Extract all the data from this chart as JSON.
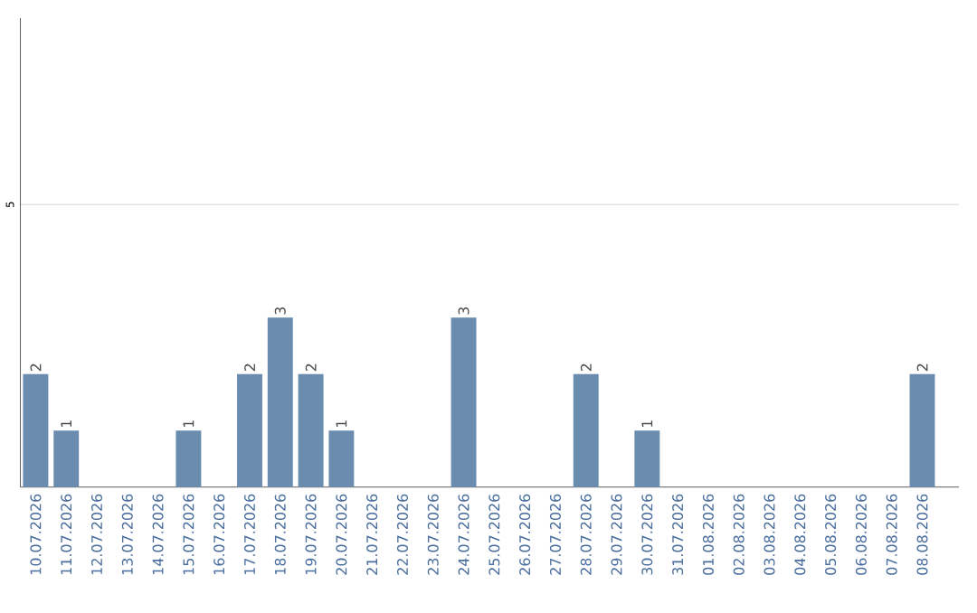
{
  "chart_data": {
    "type": "bar",
    "categories": [
      "10.07.2026",
      "11.07.2026",
      "12.07.2026",
      "13.07.2026",
      "14.07.2026",
      "15.07.2026",
      "16.07.2026",
      "17.07.2026",
      "18.07.2026",
      "19.07.2026",
      "20.07.2026",
      "21.07.2026",
      "22.07.2026",
      "23.07.2026",
      "24.07.2026",
      "25.07.2026",
      "26.07.2026",
      "27.07.2026",
      "28.07.2026",
      "29.07.2026",
      "30.07.2026",
      "31.07.2026",
      "01.08.2026",
      "02.08.2026",
      "03.08.2026",
      "04.08.2026",
      "05.08.2026",
      "06.08.2026",
      "07.08.2026",
      "08.08.2026"
    ],
    "values": [
      2,
      1,
      0,
      0,
      0,
      1,
      0,
      2,
      3,
      2,
      1,
      0,
      0,
      0,
      3,
      0,
      0,
      0,
      2,
      0,
      1,
      0,
      0,
      0,
      0,
      0,
      0,
      0,
      0,
      2
    ],
    "value_labels": [
      "2",
      "1",
      null,
      null,
      null,
      "1",
      null,
      "2",
      "3",
      "2",
      "1",
      null,
      null,
      null,
      "3",
      null,
      null,
      null,
      "2",
      null,
      "1",
      null,
      null,
      null,
      null,
      null,
      null,
      null,
      null,
      "2"
    ],
    "color": "#6a8caf",
    "ylim": [
      0,
      8.3
    ],
    "yticks": [
      5
    ],
    "grid": "y"
  }
}
